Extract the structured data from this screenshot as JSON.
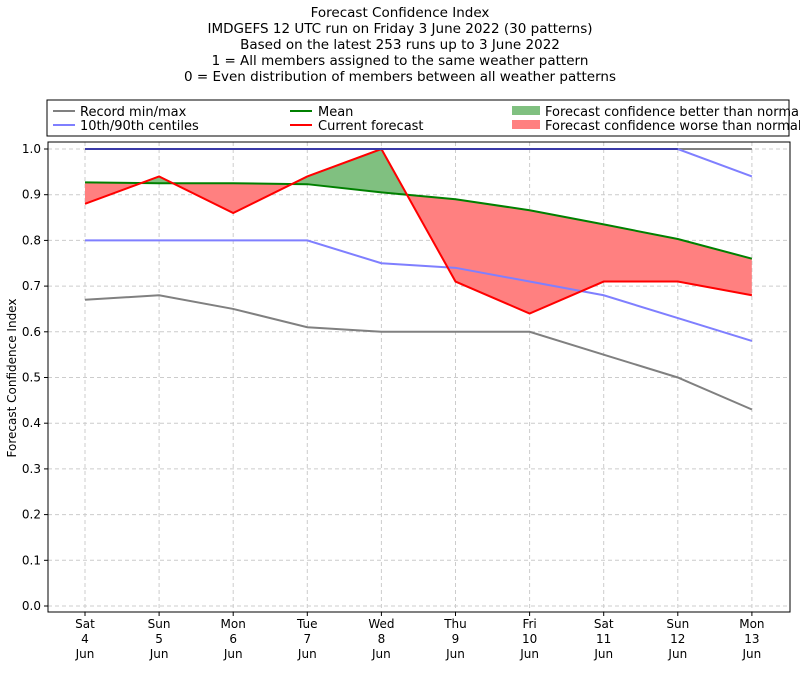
{
  "chart_data": {
    "type": "line",
    "title_lines": [
      "Forecast Confidence Index",
      "IMDGEFS 12 UTC run on Friday 3 June 2022 (30 patterns)",
      "Based on the latest 253 runs up to 3 June 2022",
      "1 = All members assigned to the same weather pattern",
      "0 = Even distribution of members between all weather patterns"
    ],
    "ylabel": "Forecast Confidence Index",
    "ylim": [
      -0.01,
      1.01
    ],
    "yticks": [
      "0.0",
      "0.1",
      "0.2",
      "0.3",
      "0.4",
      "0.5",
      "0.6",
      "0.7",
      "0.8",
      "0.9",
      "1.0"
    ],
    "categories": [
      [
        "Sat",
        "4",
        "Jun"
      ],
      [
        "Sun",
        "5",
        "Jun"
      ],
      [
        "Mon",
        "6",
        "Jun"
      ],
      [
        "Tue",
        "7",
        "Jun"
      ],
      [
        "Wed",
        "8",
        "Jun"
      ],
      [
        "Thu",
        "9",
        "Jun"
      ],
      [
        "Fri",
        "10",
        "Jun"
      ],
      [
        "Sat",
        "11",
        "Jun"
      ],
      [
        "Sun",
        "12",
        "Jun"
      ],
      [
        "Mon",
        "13",
        "Jun"
      ]
    ],
    "grid": true,
    "legend_placement": "top, above plot",
    "legend": {
      "record": "Record min/max",
      "centiles": "10th/90th centiles",
      "mean": "Mean",
      "current": "Current forecast",
      "better": "Forecast confidence better than normal",
      "worse": "Forecast confidence worse than normal"
    },
    "series": [
      {
        "name": "Record max",
        "color": "#808080",
        "values": [
          1,
          1,
          1,
          1,
          1,
          1,
          1,
          1,
          1,
          1
        ]
      },
      {
        "name": "Record min",
        "color": "#808080",
        "values": [
          0.67,
          0.68,
          0.65,
          0.61,
          0.6,
          0.6,
          0.6,
          0.55,
          0.5,
          0.43
        ]
      },
      {
        "name": "90th centile",
        "color": "#7f7fff",
        "values": [
          1,
          1,
          1,
          1,
          1,
          1,
          1,
          1,
          1,
          0.94
        ]
      },
      {
        "name": "10th centile",
        "color": "#7f7fff",
        "values": [
          0.8,
          0.8,
          0.8,
          0.8,
          0.75,
          0.74,
          0.71,
          0.68,
          0.63,
          0.58
        ]
      },
      {
        "name": "Mean",
        "color": "#008000",
        "values": [
          0.927,
          0.925,
          0.925,
          0.923,
          0.905,
          0.89,
          0.866,
          0.835,
          0.803,
          0.76
        ]
      },
      {
        "name": "Current forecast",
        "color": "#ff0000",
        "values": [
          0.88,
          0.94,
          0.86,
          0.94,
          1.0,
          0.71,
          0.64,
          0.71,
          0.71,
          0.68
        ]
      }
    ],
    "fill_colors": {
      "better": "#80c080",
      "worse": "#ff8080"
    }
  }
}
